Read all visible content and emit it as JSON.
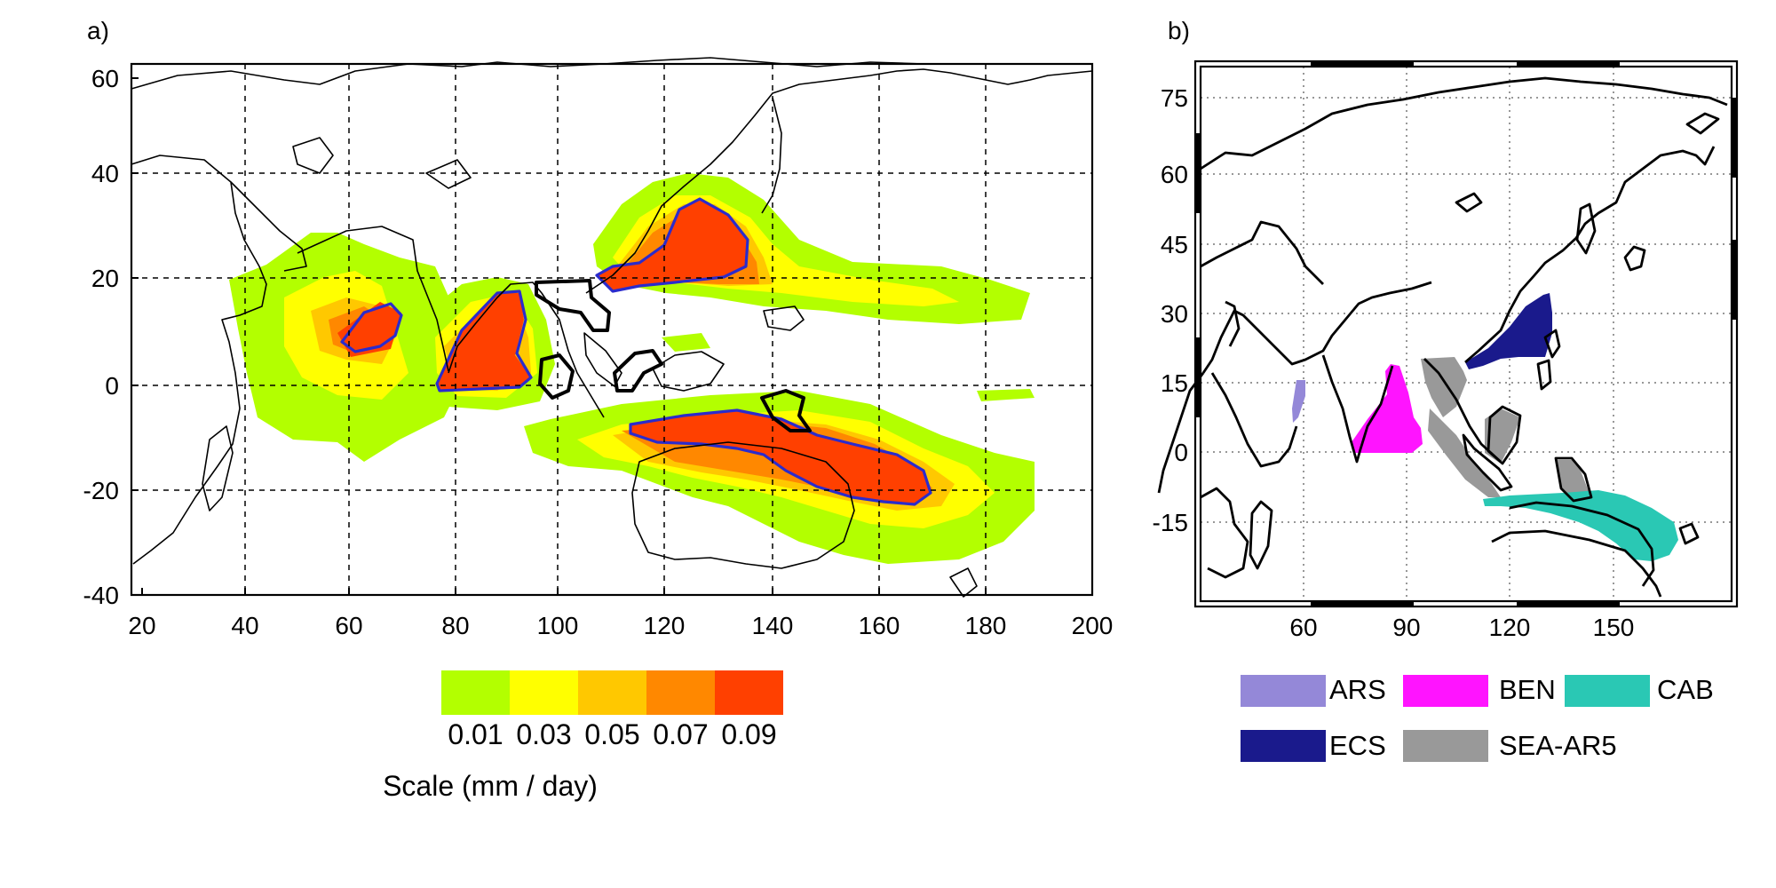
{
  "panel_a": {
    "label": "a)",
    "x_ticks": [
      "20",
      "40",
      "60",
      "80",
      "100",
      "120",
      "140",
      "160",
      "180",
      "200"
    ],
    "y_ticks": [
      "60",
      "40",
      "20",
      "0",
      "-20",
      "-40"
    ],
    "colorbar": {
      "tick_labels": [
        "0.01",
        "0.03",
        "0.05",
        "0.07",
        "0.09"
      ],
      "colors": [
        "#b3ff00",
        "#ffff00",
        "#ffc800",
        "#ff8800",
        "#ff4000"
      ],
      "caption": "Scale (mm / day)"
    },
    "contour_color": "#2b2bcc"
  },
  "panel_b": {
    "label": "b)",
    "x_ticks": [
      "60",
      "90",
      "120",
      "150"
    ],
    "y_ticks": [
      "75",
      "60",
      "45",
      "30",
      "15",
      "0",
      "-15"
    ],
    "legend": [
      {
        "name": "ARS",
        "color": "#9488d8"
      },
      {
        "name": "BEN",
        "color": "#ff14ff"
      },
      {
        "name": "CAB",
        "color": "#2ac8b4"
      },
      {
        "name": "ECS",
        "color": "#1a1a8c"
      },
      {
        "name": "SEA-AR5",
        "color": "#999999"
      }
    ]
  }
}
